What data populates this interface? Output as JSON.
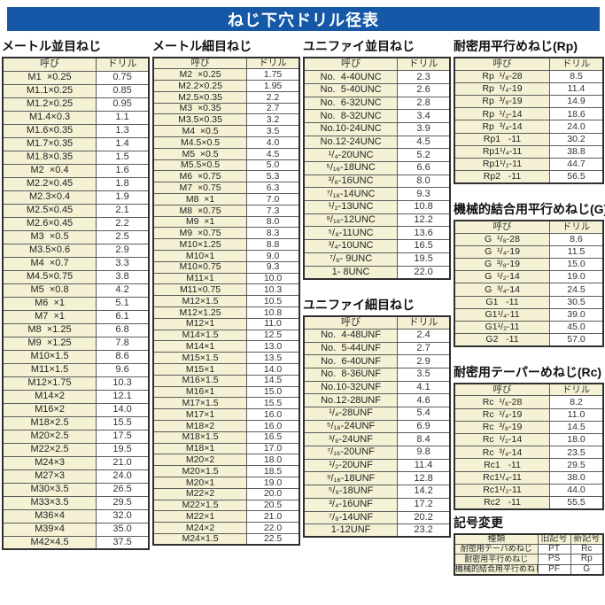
{
  "title": "ねじ下穴ドリル径表",
  "colors": {
    "banner_blue": "#1558a7",
    "cell_yellow": "#f5f1d4",
    "table_border": "#2f2f2f"
  },
  "columns": [
    {
      "sections": [
        {
          "id": "metric-coarse",
          "heading": "メートル並目ねじ",
          "headers": [
            "呼び",
            "ドリル"
          ],
          "rows": [
            [
              "M1  ×0.25",
              "0.75"
            ],
            [
              "M1.1×0.25",
              "0.85"
            ],
            [
              "M1.2×0.25",
              "0.95"
            ],
            [
              "M1.4×0.3",
              "1.1"
            ],
            [
              "M1.6×0.35",
              "1.3"
            ],
            [
              "M1.7×0.35",
              "1.4"
            ],
            [
              "M1.8×0.35",
              "1.5"
            ],
            [
              "M2  ×0.4",
              "1.6"
            ],
            [
              "M2.2×0.45",
              "1.8"
            ],
            [
              "M2.3×0.4",
              "1.9"
            ],
            [
              "M2.5×0.45",
              "2.1"
            ],
            [
              "M2.6×0.45",
              "2.2"
            ],
            [
              "M3  ×0.5",
              "2.5"
            ],
            [
              "M3.5×0.6",
              "2.9"
            ],
            [
              "M4  ×0.7",
              "3.3"
            ],
            [
              "M4.5×0.75",
              "3.8"
            ],
            [
              "M5  ×0.8",
              "4.2"
            ],
            [
              "M6  ×1",
              "5.1"
            ],
            [
              "M7  ×1",
              "6.1"
            ],
            [
              "M8  ×1.25",
              "6.8"
            ],
            [
              "M9  ×1.25",
              "7.8"
            ],
            [
              "M10×1.5",
              "8.6"
            ],
            [
              "M11×1.5",
              "9.6"
            ],
            [
              "M12×1.75",
              "10.3"
            ],
            [
              "M14×2",
              "12.1"
            ],
            [
              "M16×2",
              "14.0"
            ],
            [
              "M18×2.5",
              "15.5"
            ],
            [
              "M20×2.5",
              "17.5"
            ],
            [
              "M22×2.5",
              "19.5"
            ],
            [
              "M24×3",
              "21.0"
            ],
            [
              "M27×3",
              "24.0"
            ],
            [
              "M30×3.5",
              "26.5"
            ],
            [
              "M33×3.5",
              "29.5"
            ],
            [
              "M36×4",
              "32.0"
            ],
            [
              "M39×4",
              "35.0"
            ],
            [
              "M42×4.5",
              "37.5"
            ]
          ]
        }
      ]
    },
    {
      "sections": [
        {
          "id": "metric-fine",
          "heading": "メートル細目ねじ",
          "headers": [
            "呼び",
            "ドリル"
          ],
          "rows": [
            [
              "M2  ×0.25",
              "1.75"
            ],
            [
              "M2.2×0.25",
              "1.95"
            ],
            [
              "M2.5×0.35",
              "2.2"
            ],
            [
              "M3  ×0.35",
              "2.7"
            ],
            [
              "M3.5×0.35",
              "3.2"
            ],
            [
              "M4  ×0.5",
              "3.5"
            ],
            [
              "M4.5×0.5",
              "4.0"
            ],
            [
              "M5  ×0.5",
              "4.5"
            ],
            [
              "M5.5×0.5",
              "5.0"
            ],
            [
              "M6  ×0.75",
              "5.3"
            ],
            [
              "M7  ×0.75",
              "6.3"
            ],
            [
              "M8  ×1",
              "7.0"
            ],
            [
              "M8  ×0.75",
              "7.3"
            ],
            [
              "M9  ×1",
              "8.0"
            ],
            [
              "M9  ×0.75",
              "8.3"
            ],
            [
              "M10×1.25",
              "8.8"
            ],
            [
              "M10×1",
              "9.0"
            ],
            [
              "M10×0.75",
              "9.3"
            ],
            [
              "M11×1",
              "10.0"
            ],
            [
              "M11×0.75",
              "10.3"
            ],
            [
              "M12×1.5",
              "10.5"
            ],
            [
              "M12×1.25",
              "10.8"
            ],
            [
              "M12×1",
              "11.0"
            ],
            [
              "M14×1.5",
              "12.5"
            ],
            [
              "M14×1",
              "13.0"
            ],
            [
              "M15×1.5",
              "13.5"
            ],
            [
              "M15×1",
              "14.0"
            ],
            [
              "M16×1.5",
              "14.5"
            ],
            [
              "M16×1",
              "15.0"
            ],
            [
              "M17×1.5",
              "15.5"
            ],
            [
              "M17×1",
              "16.0"
            ],
            [
              "M18×2",
              "16.0"
            ],
            [
              "M18×1.5",
              "16.5"
            ],
            [
              "M18×1",
              "17.0"
            ],
            [
              "M20×2",
              "18.0"
            ],
            [
              "M20×1.5",
              "18.5"
            ],
            [
              "M20×1",
              "19.0"
            ],
            [
              "M22×2",
              "20.0"
            ],
            [
              "M22×1.5",
              "20.5"
            ],
            [
              "M22×1",
              "21.0"
            ],
            [
              "M24×2",
              "22.0"
            ],
            [
              "M24×1.5",
              "22.5"
            ]
          ]
        }
      ]
    },
    {
      "sections": [
        {
          "id": "unified-coarse",
          "heading": "ユニファイ並目ねじ",
          "headers": [
            "呼び",
            "ドリル"
          ],
          "rows": [
            [
              "No.  4-40UNC",
              "2.3"
            ],
            [
              "No.  5-40UNC",
              "2.6"
            ],
            [
              "No.  6-32UNC",
              "2.8"
            ],
            [
              "No.  8-32UNC",
              "3.4"
            ],
            [
              "No.10-24UNC",
              "3.9"
            ],
            [
              "No.12-24UNC",
              "4.5"
            ],
            [
              "¹/₄-20UNC",
              "5.2"
            ],
            [
              "⁵/₁₆-18UNC",
              "6.6"
            ],
            [
              "³/₈-16UNC",
              "8.0"
            ],
            [
              "⁷/₁₆-14UNC",
              "9.3"
            ],
            [
              "¹/₂-13UNC",
              "10.8"
            ],
            [
              "⁹/₁₆-12UNC",
              "12.2"
            ],
            [
              "⁵/₈-11UNC",
              "13.6"
            ],
            [
              "³/₄-10UNC",
              "16.5"
            ],
            [
              "⁷/₈- 9UNC",
              "19.5"
            ],
            [
              "1- 8UNC",
              "22.0"
            ]
          ]
        },
        {
          "id": "unified-fine",
          "heading": "ユニファイ細目ねじ",
          "headers": [
            "呼び",
            "ドリル"
          ],
          "rows": [
            [
              "No.  4-48UNF",
              "2.4"
            ],
            [
              "No.  5-44UNF",
              "2.7"
            ],
            [
              "No.  6-40UNF",
              "2.9"
            ],
            [
              "No.  8-36UNF",
              "3.5"
            ],
            [
              "No.10-32UNF",
              "4.1"
            ],
            [
              "No.12-28UNF",
              "4.6"
            ],
            [
              "¹/₄-28UNF",
              "5.4"
            ],
            [
              "⁵/₁₆-24UNF",
              "6.9"
            ],
            [
              "³/₈-24UNF",
              "8.4"
            ],
            [
              "⁷/₁₆-20UNF",
              "9.8"
            ],
            [
              "¹/₂-20UNF",
              "11.4"
            ],
            [
              "⁹/₁₆-18UNF",
              "12.8"
            ],
            [
              "⁵/₈-18UNF",
              "14.2"
            ],
            [
              "³/₄-16UNF",
              "17.2"
            ],
            [
              "⁷/₈-14UNF",
              "20.2"
            ],
            [
              "1-12UNF",
              "23.2"
            ]
          ]
        }
      ]
    },
    {
      "sections": [
        {
          "id": "rp",
          "heading": "耐密用平行めねじ(Rp)",
          "headers": [
            "呼び",
            "ドリル"
          ],
          "rows": [
            [
              "Rp  ¹/₈-28",
              "8.5"
            ],
            [
              "Rp  ¹/₄-19",
              "11.4"
            ],
            [
              "Rp  ³/₈-19",
              "14.9"
            ],
            [
              "Rp  ¹/₂-14",
              "18.6"
            ],
            [
              "Rp  ³/₄-14",
              "24.0"
            ],
            [
              "Rp1   -11",
              "30.2"
            ],
            [
              "Rp1¹/₄-11",
              "38.8"
            ],
            [
              "Rp1¹/₂-11",
              "44.7"
            ],
            [
              "Rp2   -11",
              "56.5"
            ]
          ]
        },
        {
          "id": "g",
          "heading": "機械的結合用平行めねじ(G)",
          "headers": [
            "呼び",
            "ドリル"
          ],
          "rows": [
            [
              "G  ¹/₈-28",
              "8.6"
            ],
            [
              "G  ¹/₄-19",
              "11.5"
            ],
            [
              "G  ³/₈-19",
              "15.0"
            ],
            [
              "G  ¹/₂-14",
              "19.0"
            ],
            [
              "G  ³/₄-14",
              "24.5"
            ],
            [
              "G1   -11",
              "30.5"
            ],
            [
              "G1¹/₄-11",
              "39.0"
            ],
            [
              "G1¹/₂-11",
              "45.0"
            ],
            [
              "G2   -11",
              "57.0"
            ]
          ]
        },
        {
          "id": "rc",
          "heading": "耐密用テーパーめねじ(Rc)",
          "headers": [
            "呼び",
            "ドリル"
          ],
          "rows": [
            [
              "Rc  ¹/₈-28",
              "8.2"
            ],
            [
              "Rc  ¹/₄-19",
              "11.0"
            ],
            [
              "Rc  ³/₈-19",
              "14.5"
            ],
            [
              "Rc  ¹/₂-14",
              "18.0"
            ],
            [
              "Rc  ³/₄-14",
              "23.5"
            ],
            [
              "Rc1   -11",
              "29.5"
            ],
            [
              "Rc1¹/₄-11",
              "38.0"
            ],
            [
              "Rc1¹/₂-11",
              "44.0"
            ],
            [
              "Rc2   -11",
              "55.5"
            ]
          ]
        },
        {
          "id": "symbol-change",
          "heading": "記号変更",
          "headers": [
            "種類",
            "旧記号",
            "新記号"
          ],
          "rows": [
            [
              "耐密用テーパめねじ",
              "PT",
              "Rc"
            ],
            [
              "耐密用平行めねじ",
              "PS",
              "Rp"
            ],
            [
              "機械的結合用平行めねじ",
              "PF",
              "G"
            ]
          ]
        }
      ]
    }
  ]
}
